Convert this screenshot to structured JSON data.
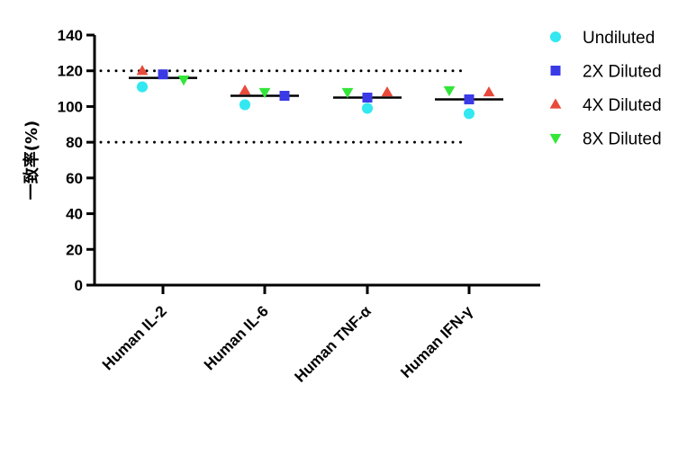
{
  "chart_data": {
    "type": "scatter",
    "ylabel": "一致率(%)",
    "ylim": [
      0,
      140
    ],
    "yticks": [
      "0",
      "20",
      "40",
      "60",
      "80",
      "100",
      "120",
      "140"
    ],
    "categories": [
      "Human IL-2",
      "Human IL-6",
      "Human TNF-α",
      "Human IFN-γ"
    ],
    "series": [
      {
        "name": "Undiluted",
        "marker": "circle",
        "color": "#33e8f0",
        "values": [
          111,
          101,
          99,
          96
        ]
      },
      {
        "name": "2X Diluted",
        "marker": "square",
        "color": "#3a3ae6",
        "values": [
          118,
          106,
          105,
          104
        ]
      },
      {
        "name": "4X Diluted",
        "marker": "triangle-up",
        "color": "#e84a3c",
        "values": [
          120,
          109,
          108,
          108
        ]
      },
      {
        "name": "8X Diluted",
        "marker": "triangle-down",
        "color": "#33e63a",
        "values": [
          115,
          108,
          108,
          109
        ]
      }
    ],
    "means": [
      116,
      106,
      105,
      104
    ],
    "reference_lines": [
      120,
      80
    ],
    "legend": "right",
    "grid": false
  }
}
